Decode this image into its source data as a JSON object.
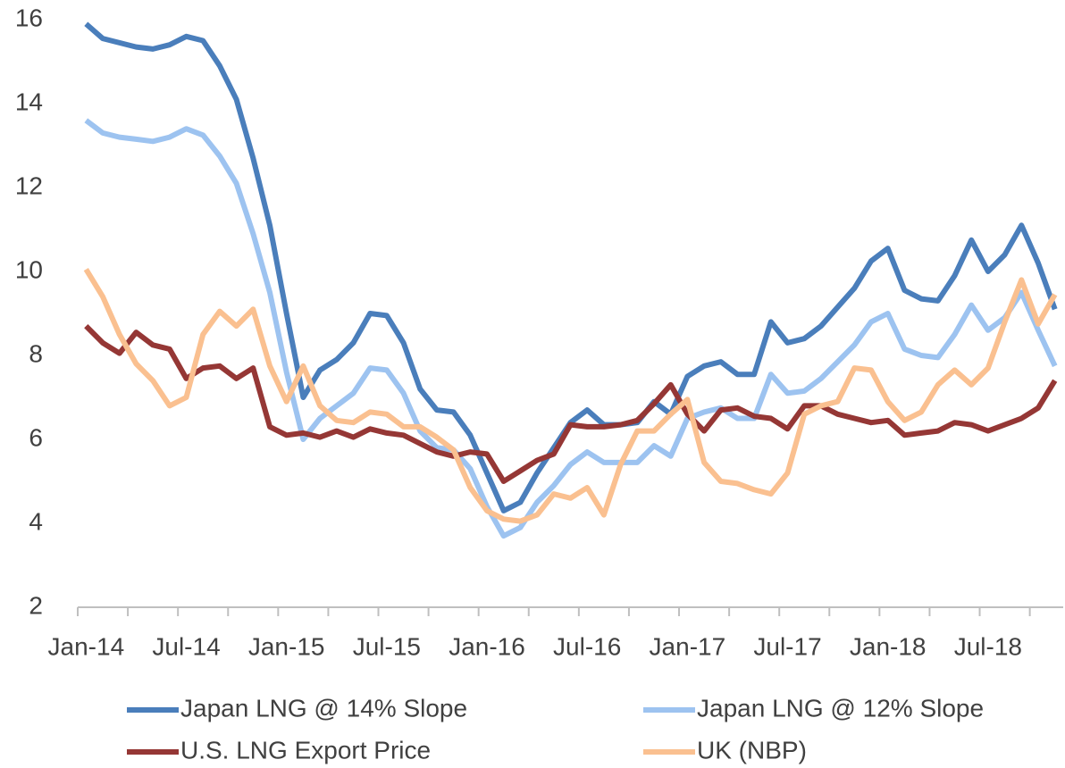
{
  "chart_data": {
    "type": "line",
    "categories": [
      "Jan-14",
      null,
      null,
      null,
      null,
      null,
      "Jul-14",
      null,
      null,
      null,
      null,
      null,
      "Jan-15",
      null,
      null,
      null,
      null,
      null,
      "Jul-15",
      null,
      null,
      null,
      null,
      null,
      "Jan-16",
      null,
      null,
      null,
      null,
      null,
      "Jul-16",
      null,
      null,
      null,
      null,
      null,
      "Jan-17",
      null,
      null,
      null,
      null,
      null,
      "Jul-17",
      null,
      null,
      null,
      null,
      null,
      "Jan-18",
      null,
      null,
      null,
      null,
      null,
      "Jul-18",
      null,
      null,
      null,
      null
    ],
    "series": [
      {
        "name": "Japan LNG @ 14% Slope",
        "color": "#4a7ebb",
        "values": [
          15.9,
          15.55,
          15.45,
          15.35,
          15.3,
          15.4,
          15.6,
          15.5,
          14.9,
          14.1,
          12.7,
          11.1,
          9.0,
          7.0,
          7.65,
          7.9,
          8.3,
          9.0,
          8.95,
          8.3,
          7.2,
          6.7,
          6.65,
          6.1,
          5.2,
          4.3,
          4.5,
          5.2,
          5.8,
          6.4,
          6.7,
          6.35,
          6.35,
          6.4,
          6.9,
          6.6,
          7.5,
          7.75,
          7.85,
          7.55,
          7.55,
          8.8,
          8.3,
          8.4,
          8.7,
          9.15,
          9.6,
          10.25,
          10.55,
          9.55,
          9.35,
          9.3,
          9.9,
          10.75,
          10.0,
          10.4,
          11.1,
          10.2,
          9.1
        ]
      },
      {
        "name": "Japan LNG @ 12% Slope",
        "color": "#9dc3f0",
        "values": [
          13.6,
          13.3,
          13.2,
          13.15,
          13.1,
          13.2,
          13.4,
          13.25,
          12.75,
          12.1,
          10.9,
          9.5,
          7.6,
          6.0,
          6.5,
          6.8,
          7.1,
          7.7,
          7.65,
          7.1,
          6.2,
          5.8,
          5.75,
          5.3,
          4.4,
          3.7,
          3.9,
          4.5,
          4.9,
          5.4,
          5.7,
          5.45,
          5.45,
          5.45,
          5.85,
          5.6,
          6.5,
          6.65,
          6.75,
          6.5,
          6.5,
          7.55,
          7.1,
          7.15,
          7.45,
          7.85,
          8.25,
          8.8,
          9.0,
          8.15,
          8.0,
          7.95,
          8.5,
          9.2,
          8.6,
          8.9,
          9.5,
          8.6,
          7.75
        ]
      },
      {
        "name": "U.S. LNG Export Price",
        "color": "#953735",
        "values": [
          8.7,
          8.3,
          8.05,
          8.55,
          8.25,
          8.15,
          7.45,
          7.7,
          7.75,
          7.45,
          7.7,
          6.3,
          6.1,
          6.15,
          6.05,
          6.2,
          6.05,
          6.25,
          6.15,
          6.1,
          5.9,
          5.7,
          5.6,
          5.7,
          5.65,
          5.0,
          5.25,
          5.5,
          5.65,
          6.35,
          6.3,
          6.3,
          6.35,
          6.45,
          6.85,
          7.3,
          6.6,
          6.2,
          6.7,
          6.75,
          6.55,
          6.5,
          6.25,
          6.8,
          6.8,
          6.6,
          6.5,
          6.4,
          6.45,
          6.1,
          6.15,
          6.2,
          6.4,
          6.35,
          6.2,
          6.35,
          6.5,
          6.75,
          7.4
        ]
      },
      {
        "name": "UK (NBP)",
        "color": "#fac090",
        "values": [
          10.05,
          9.4,
          8.5,
          7.8,
          7.4,
          6.8,
          7.0,
          8.5,
          9.05,
          8.7,
          9.1,
          7.75,
          6.9,
          7.75,
          6.8,
          6.45,
          6.4,
          6.65,
          6.6,
          6.3,
          6.3,
          6.05,
          5.75,
          4.85,
          4.3,
          4.1,
          4.05,
          4.2,
          4.7,
          4.6,
          4.85,
          4.2,
          5.4,
          6.2,
          6.2,
          6.6,
          6.95,
          5.45,
          5.0,
          4.95,
          4.8,
          4.7,
          5.2,
          6.6,
          6.8,
          6.9,
          7.7,
          7.65,
          6.9,
          6.45,
          6.65,
          7.3,
          7.65,
          7.3,
          7.7,
          8.8,
          9.8,
          8.75,
          9.45
        ]
      }
    ],
    "ylim": [
      2,
      16
    ],
    "yticks": [
      2,
      4,
      6,
      8,
      10,
      12,
      14,
      16
    ],
    "grid": false,
    "legend": "bottom"
  }
}
